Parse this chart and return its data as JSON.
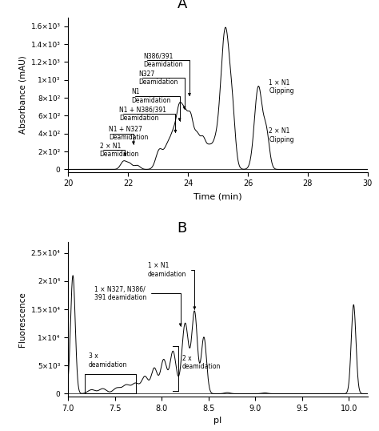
{
  "figsize": [
    4.74,
    5.38
  ],
  "dpi": 100,
  "background": "#ffffff",
  "panel_A": {
    "title": "A",
    "xlabel": "Time (min)",
    "ylabel": "Absorbance (mAU)",
    "xlim": [
      20,
      30
    ],
    "ylim": [
      -30,
      1700
    ],
    "yticks": [
      0,
      200,
      400,
      600,
      800,
      1000,
      1200,
      1400,
      1600
    ],
    "ytick_labels": [
      "0",
      "2×10²",
      "4×10²",
      "6×10²",
      "8×10²",
      "1×10³",
      "1.2×10³",
      "1.4×10³",
      "1.6×10³"
    ],
    "xticks": [
      20,
      22,
      24,
      26,
      28,
      30
    ]
  },
  "panel_B": {
    "title": "B",
    "xlabel": "pI",
    "ylabel": "Fluorescence",
    "xlim": [
      7.0,
      10.2
    ],
    "ylim": [
      -500,
      27000
    ],
    "yticks": [
      0,
      5000,
      10000,
      15000,
      20000,
      25000
    ],
    "ytick_labels": [
      "0",
      "5×10³",
      "1×10⁴",
      "1.5×10⁴",
      "2×10⁴",
      "2.5×10⁴"
    ],
    "xticks": [
      7.0,
      7.5,
      8.0,
      8.5,
      9.0,
      9.5,
      10.0
    ]
  }
}
